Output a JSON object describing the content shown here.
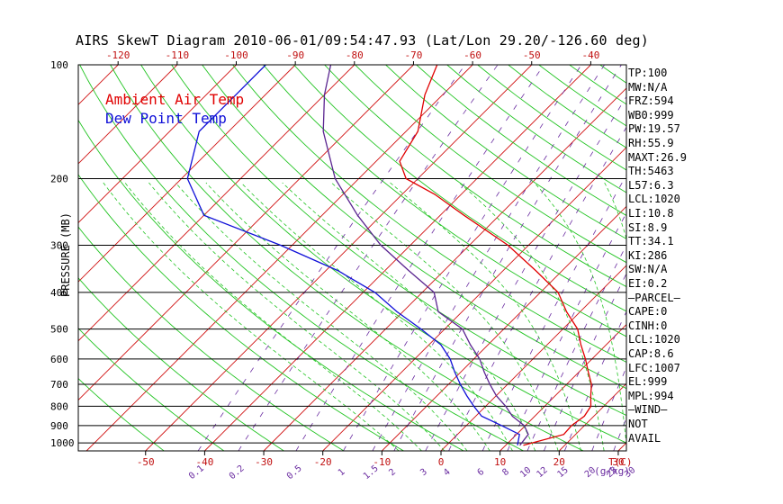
{
  "title": "AIRS SkewT Diagram 2010-06-01/09:54:47.93 (Lat/Lon 29.20/-126.60 deg)",
  "legend": {
    "ambient": "Ambient Air Temp",
    "dewpoint": "Dew Point Temp"
  },
  "colors": {
    "ambient": "#e00000",
    "dewpoint": "#1010d8",
    "isotherm": "#d01010",
    "dry_adiabat": "#22c422",
    "moist_adiabat": "#22c422",
    "mixing_ratio": "#6a2ca0",
    "pressure_line": "#000000",
    "wetbulb": "#5a2590"
  },
  "chart_data": {
    "type": "line",
    "ylabel": "PRESSURE (MB)",
    "y_scale": "log",
    "ylim": [
      1050,
      100
    ],
    "pressure_ticks": [
      100,
      200,
      300,
      400,
      500,
      600,
      700,
      800,
      900,
      1000
    ],
    "bottom_temp_ticks": [
      "-50",
      "-40",
      "-30",
      "-20",
      "-10",
      "0",
      "10",
      "20",
      "30"
    ],
    "bottom_temp_tick_values": [
      -50,
      -40,
      -30,
      -20,
      -10,
      0,
      10,
      20,
      30
    ],
    "bottom_temp_unit": "T(C)",
    "top_temp_ticks": [
      "-120",
      "-110",
      "-100",
      "-90",
      "-80",
      "-70",
      "-60",
      "-50",
      "-40"
    ],
    "top_temp_tick_values": [
      -120,
      -110,
      -100,
      -90,
      -80,
      -70,
      -60,
      -50,
      -40
    ],
    "mixing_ratio_labels": [
      "0.1",
      "0.2",
      "0.5",
      "1",
      "1.5",
      "2",
      "3",
      "4",
      "6",
      "8",
      "10",
      "12",
      "15",
      "20",
      "25",
      "30",
      "40"
    ],
    "mixing_ratio_unit": "g/kg",
    "series": [
      {
        "name": "Ambient Air Temp",
        "pressure": [
          1015,
          950,
          900,
          850,
          800,
          750,
          700,
          650,
          600,
          550,
          500,
          450,
          400,
          350,
          300,
          250,
          220,
          200,
          180,
          150,
          120,
          100
        ],
        "temp": [
          13.0,
          18.0,
          17.8,
          18.4,
          17.8,
          16.0,
          14.2,
          11.6,
          8.9,
          5.7,
          2.5,
          -2.3,
          -7.0,
          -14.5,
          -23.5,
          -36.0,
          -44.5,
          -52.0,
          -56.0,
          -58.0,
          -63.0,
          -66.0
        ]
      },
      {
        "name": "Dew Point Temp",
        "pressure": [
          1015,
          950,
          900,
          850,
          800,
          750,
          700,
          650,
          600,
          550,
          500,
          450,
          400,
          350,
          300,
          250,
          200,
          150,
          120,
          100
        ],
        "temp": [
          12.0,
          10.5,
          6.0,
          1.0,
          -2.0,
          -5.0,
          -8.0,
          -11.0,
          -14.0,
          -18.0,
          -24.0,
          -31.0,
          -38.0,
          -48.0,
          -62.0,
          -80.0,
          -89.0,
          -95.0,
          -95.0,
          -95.0
        ]
      },
      {
        "name": "Wet Bulb Temp",
        "pressure": [
          1015,
          950,
          900,
          850,
          800,
          750,
          700,
          650,
          600,
          550,
          500,
          450,
          400,
          350,
          300,
          250,
          200,
          150,
          120,
          100
        ],
        "temp": [
          12.4,
          12.0,
          9.8,
          6.2,
          3.4,
          0.0,
          -3.0,
          -6.0,
          -9.0,
          -13.0,
          -17.0,
          -24.0,
          -28.0,
          -36.0,
          -45.0,
          -54.0,
          -64.0,
          -74.0,
          -80.0,
          -84.0
        ]
      }
    ],
    "indices": [
      "TP:100",
      "MW:N/A",
      "FRZ:594",
      "WB0:999",
      "PW:19.57",
      "RH:55.9",
      "MAXT:26.9",
      "TH:5463",
      "L57:6.3",
      "LCL:1020",
      "LI:10.8",
      "SI:8.9",
      "TT:34.1",
      "KI:286",
      "SW:N/A",
      "EI:0.2",
      "–PARCEL–",
      "CAPE:0",
      "CINH:0",
      "LCL:1020",
      "CAP:8.6",
      "LFC:1007",
      "EL:999",
      "MPL:994",
      "–WIND–",
      "NOT",
      "AVAIL"
    ]
  }
}
